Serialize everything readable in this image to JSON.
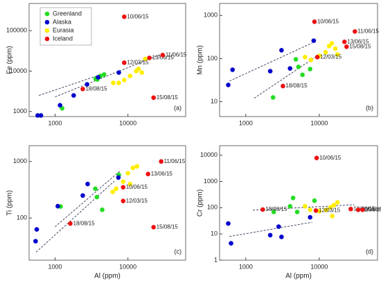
{
  "chart_data": [
    {
      "type": "scatter",
      "ylabel": "Fe (ppm)",
      "annotation": "(a)",
      "log": true,
      "legend": "upper left",
      "xlim": [
        440,
        62000
      ],
      "ylim": [
        750,
        470000
      ],
      "xticks": [
        1000,
        10000
      ],
      "yticks": [
        1000,
        10000,
        100000
      ],
      "series": [
        {
          "name": "Greenland",
          "color": "#22dd22",
          "x": [
            1250,
            3800,
            4200,
            4700,
            3600
          ],
          "values": [
            1200,
            6200,
            7600,
            8200,
            6500
          ]
        },
        {
          "name": "Alaska",
          "color": "#0000cc",
          "x": [
            577,
            640,
            1170,
            1800,
            2750,
            3900,
            7500
          ],
          "values": [
            800,
            800,
            1430,
            2500,
            4700,
            7000,
            9200
          ]
        },
        {
          "name": "Eurasia",
          "color": "#ffee00",
          "x": [
            6300,
            7500,
            8900,
            10700,
            13000,
            15500,
            17300,
            14000
          ],
          "values": [
            5100,
            5100,
            6000,
            7600,
            10000,
            9200,
            20000,
            11300
          ]
        },
        {
          "name": "Iceland",
          "color": "#ee1111",
          "x": [
            2400,
            8900,
            8900,
            19700,
            30000,
            22500
          ],
          "values": [
            3600,
            220000,
            16100,
            21200,
            24900,
            2200
          ],
          "labels": [
            "18/08/15",
            "10/06/15",
            "12/03/15",
            "13/06/15",
            "11/06/15",
            "15/08/15"
          ]
        }
      ],
      "trendlines": [
        {
          "x": [
            600,
            5000
          ],
          "y": [
            2500,
            9000
          ]
        },
        {
          "x": [
            1000,
            30000
          ],
          "y": [
            2300,
            27000
          ]
        }
      ]
    },
    {
      "type": "scatter",
      "ylabel": "Mn (ppm)",
      "annotation": "(b)",
      "log": true,
      "xlim": [
        440,
        62000
      ],
      "ylim": [
        4.5,
        1900
      ],
      "xticks": [
        1000,
        10000
      ],
      "yticks": [
        10,
        100,
        1000
      ],
      "series": [
        {
          "name": "Greenland",
          "color": "#22dd22",
          "x": [
            2350,
            5200,
            5900,
            7500,
            4800
          ],
          "values": [
            12.5,
            64,
            42,
            57,
            96
          ]
        },
        {
          "name": "Alaska",
          "color": "#0000cc",
          "x": [
            577,
            660,
            2150,
            3060,
            4000,
            8400
          ],
          "values": [
            24.4,
            55,
            51,
            156,
            59,
            260
          ]
        },
        {
          "name": "Eurasia",
          "color": "#ffee00",
          "x": [
            6400,
            7700,
            10000,
            12200,
            13600,
            14800,
            16500,
            17700
          ],
          "values": [
            108,
            93,
            116,
            140,
            195,
            225,
            170,
            125
          ]
        },
        {
          "name": "Iceland",
          "color": "#ee1111",
          "x": [
            8600,
            9400,
            3200,
            30500,
            22000,
            23500
          ],
          "values": [
            715,
            108,
            23,
            425,
            244,
            188
          ],
          "labels": [
            "10/06/15",
            "12/03/15",
            "18/08/15",
            "11/06/15",
            "13/06/15",
            "15/08/15"
          ]
        }
      ],
      "trendlines": [
        {
          "x": [
            600,
            8000
          ],
          "y": [
            30,
            230
          ]
        },
        {
          "x": [
            1300,
            9000
          ],
          "y": [
            12,
            110
          ]
        }
      ]
    },
    {
      "type": "scatter",
      "ylabel": "Ti (ppm)",
      "xlabel": "Al (ppm)",
      "annotation": "(c)",
      "log": true,
      "xlim": [
        440,
        62000
      ],
      "ylim": [
        18,
        1900
      ],
      "xticks": [
        1000,
        10000
      ],
      "yticks": [
        100,
        1000
      ],
      "series": [
        {
          "name": "Greenland",
          "color": "#22dd22",
          "x": [
            1190,
            3570,
            3750,
            4440,
            7500
          ],
          "values": [
            160,
            330,
            235,
            140,
            580
          ]
        },
        {
          "name": "Alaska",
          "color": "#0000cc",
          "x": [
            540,
            560,
            1090,
            2400,
            2800,
            7400
          ],
          "values": [
            39,
            63,
            162,
            250,
            400,
            520
          ]
        },
        {
          "name": "Eurasia",
          "color": "#ffee00",
          "x": [
            6200,
            6900,
            8600,
            10000,
            11700,
            13300,
            10700
          ],
          "values": [
            290,
            330,
            440,
            620,
            770,
            820,
            400
          ]
        },
        {
          "name": "Iceland",
          "color": "#ee1111",
          "x": [
            1620,
            8600,
            8600,
            18900,
            28600,
            22500
          ],
          "values": [
            80,
            350,
            200,
            600,
            1000,
            69
          ],
          "labels": [
            "18/08/15",
            "10/06/15",
            "12/03/15",
            "13/06/15",
            "11/06/15",
            "15/08/15"
          ]
        }
      ],
      "trendlines": [
        {
          "x": [
            1000,
            8000
          ],
          "y": [
            70,
            700
          ]
        },
        {
          "x": [
            550,
            6500
          ],
          "y": [
            25,
            450
          ]
        }
      ]
    },
    {
      "type": "scatter",
      "ylabel": "Cr (ppm)",
      "xlabel": "Al (ppm)",
      "annotation": "(d)",
      "log": true,
      "xlim": [
        440,
        62000
      ],
      "ylim": [
        1,
        23000
      ],
      "xticks": [
        1000,
        10000
      ],
      "yticks": [
        1,
        10,
        100,
        1000,
        10000
      ],
      "series": [
        {
          "name": "Greenland",
          "color": "#22dd22",
          "x": [
            2400,
            4000,
            4400,
            5000,
            8600
          ],
          "values": [
            69,
            113,
            235,
            69,
            185
          ]
        },
        {
          "name": "Alaska",
          "color": "#0000cc",
          "x": [
            577,
            630,
            2150,
            2800,
            3060,
            7500
          ],
          "values": [
            25,
            4.4,
            9,
            19,
            7.7,
            43
          ]
        },
        {
          "name": "Eurasia",
          "color": "#ffee00",
          "x": [
            6400,
            7500,
            10000,
            12400,
            14200,
            15800,
            17700,
            15000
          ],
          "values": [
            113,
            83,
            74,
            83,
            104,
            125,
            160,
            48
          ]
        },
        {
          "name": "Iceland",
          "color": "#ee1111",
          "x": [
            9200,
            9000,
            1700,
            26800,
            33800,
            38800
          ],
          "values": [
            7850,
            78,
            85,
            89,
            83,
            83
          ],
          "labels": [
            "10/06/15",
            "12/03/15",
            "18/08/15",
            "13/06/15",
            "11/06/15",
            "15/08/15"
          ]
        }
      ],
      "trendlines": [
        {
          "x": [
            1250,
            30000
          ],
          "y": [
            80,
            130
          ]
        },
        {
          "x": [
            600,
            8000
          ],
          "y": [
            8,
            28
          ]
        }
      ]
    }
  ]
}
